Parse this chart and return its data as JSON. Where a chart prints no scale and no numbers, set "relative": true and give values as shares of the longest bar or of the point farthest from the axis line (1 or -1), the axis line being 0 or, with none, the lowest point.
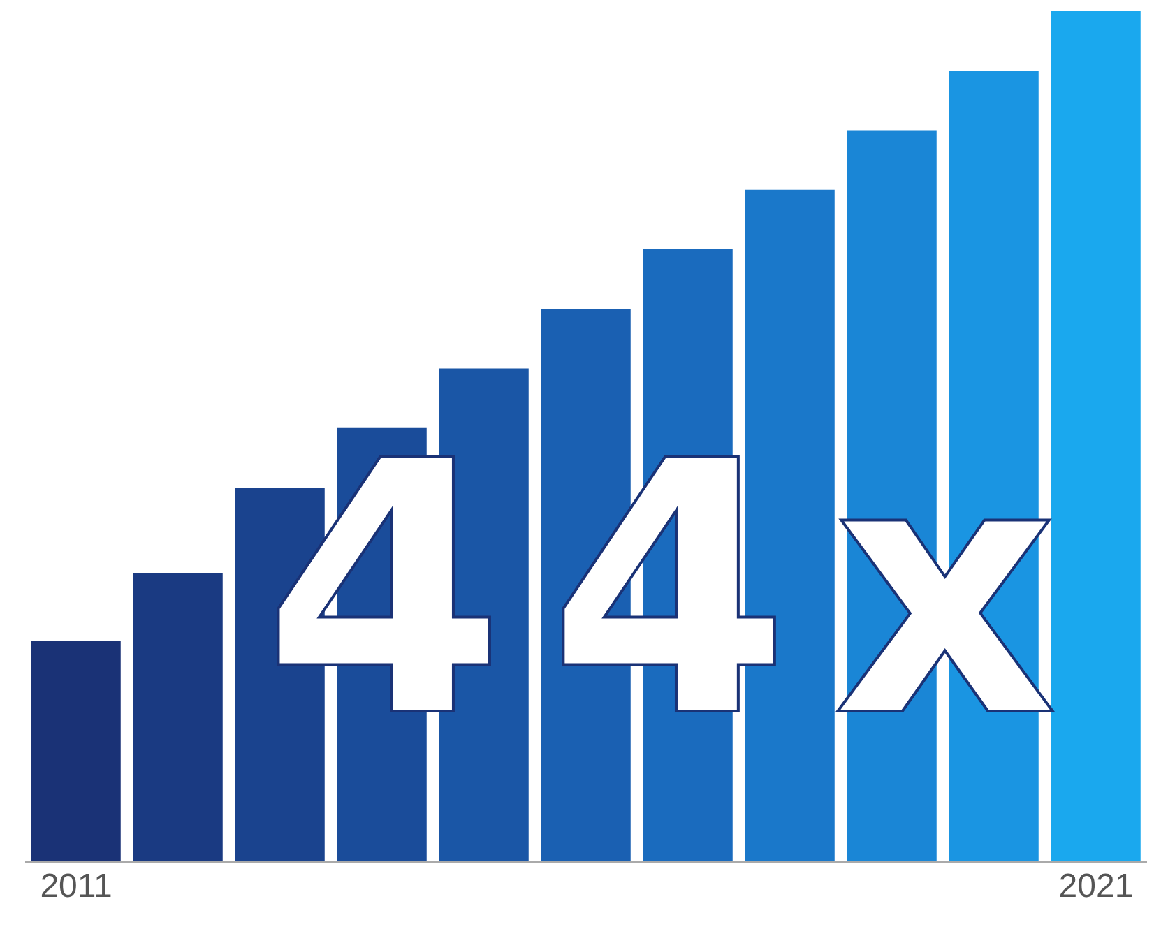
{
  "chart_data": {
    "type": "bar",
    "relative": true,
    "categories": [
      "2011",
      null,
      null,
      null,
      null,
      null,
      null,
      null,
      null,
      null,
      "2021"
    ],
    "values": [
      0.26,
      0.34,
      0.44,
      0.51,
      0.58,
      0.65,
      0.72,
      0.79,
      0.86,
      0.93,
      1
    ],
    "colors": [
      "#1a3276",
      "#1a3a82",
      "#1a438e",
      "#1a4c9a",
      "#1a56a6",
      "#1a60b2",
      "#1a6bbe",
      "#1a78ca",
      "#1a86d6",
      "#1a95e2",
      "#1aa8ee"
    ],
    "annotations": [
      "44x"
    ],
    "grid": false,
    "legend": false
  }
}
